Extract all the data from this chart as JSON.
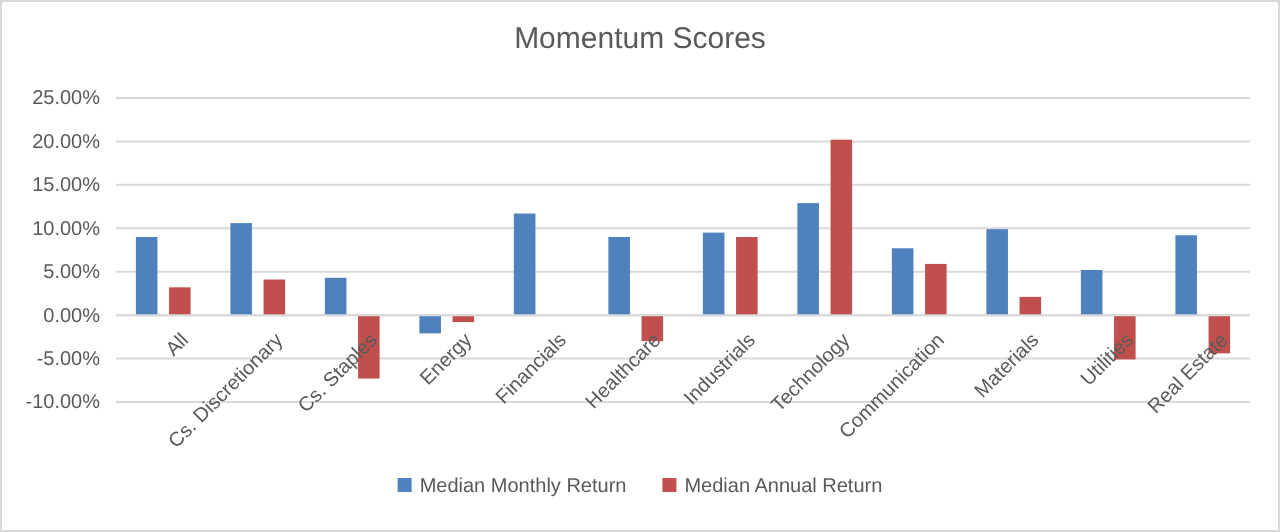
{
  "chart_data": {
    "type": "bar",
    "title": "Momentum Scores",
    "categories": [
      "All",
      "Cs. Discretionary",
      "Cs. Staples",
      "Energy",
      "Financials",
      "Healthcare",
      "Industrials",
      "Technology",
      "Communication",
      "Materials",
      "Utilities",
      "Real Estate"
    ],
    "series": [
      {
        "name": "Median Monthly Return",
        "color": "#4f81bd",
        "values": [
          9.0,
          10.6,
          4.3,
          -2.1,
          11.7,
          9.0,
          9.5,
          12.9,
          7.7,
          9.9,
          5.2,
          9.2
        ]
      },
      {
        "name": "Median Annual Return",
        "color": "#c0504d",
        "values": [
          3.2,
          4.1,
          -7.3,
          -0.8,
          0,
          -3.0,
          9.0,
          20.2,
          5.9,
          2.1,
          -5.1,
          -4.4
        ]
      }
    ],
    "ylim": [
      -10,
      25
    ],
    "yticks": [
      {
        "value": -10,
        "label": "-10.00%"
      },
      {
        "value": -5,
        "label": "-5.00%"
      },
      {
        "value": 0,
        "label": "0.00%"
      },
      {
        "value": 5,
        "label": "5.00%"
      },
      {
        "value": 10,
        "label": "10.00%"
      },
      {
        "value": 15,
        "label": "15.00%"
      },
      {
        "value": 20,
        "label": "20.00%"
      },
      {
        "value": 25,
        "label": "25.00%"
      }
    ],
    "grid": "y",
    "legend": "bottom"
  }
}
